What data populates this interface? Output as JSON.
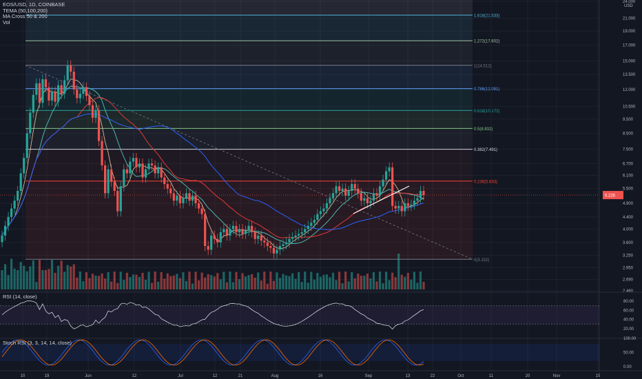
{
  "header": {
    "symbol": "EOS/USD, 1D, COINBASE",
    "indicators": [
      "TEMA (50,100,200)",
      "MA Cross 50 & 200",
      "Vol"
    ]
  },
  "axis": {
    "currency": "USD",
    "price_ticks": [
      "24.000",
      "21.000",
      "19.000",
      "17.000",
      "15.000",
      "13.500",
      "12.000",
      "10.500",
      "9.500",
      "8.500",
      "7.500",
      "6.700",
      "6.100",
      "5.500",
      "4.900",
      "4.400",
      "4.000",
      "3.600",
      "3.250",
      "2.950",
      "2.690",
      "2.460"
    ],
    "current_price": "5.226",
    "date_ticks": [
      "10",
      "19",
      "Jun",
      "12",
      "Jul",
      "12",
      "21",
      "Aug",
      "16",
      "Sep",
      "13",
      "22",
      "Oct",
      "11",
      "20",
      "Nov",
      "15"
    ]
  },
  "fib": {
    "levels": [
      {
        "ratio": "1.618",
        "price": "21.533",
        "label": "1.618(21.533)",
        "color": "#4fb3d8"
      },
      {
        "ratio": "1.272",
        "price": "17.602",
        "label": "1.272(17.602)",
        "color": "#9fc4a0"
      },
      {
        "ratio": "1",
        "price": "14.512",
        "label": "1(14.512)",
        "color": "#787b86"
      },
      {
        "ratio": "0.786",
        "price": "12.081",
        "label": "0.786(12.081)",
        "color": "#5b9cf6"
      },
      {
        "ratio": "0.618",
        "price": "10.172",
        "label": "0.618(10.172)",
        "color": "#26a69a"
      },
      {
        "ratio": "0.5",
        "price": "8.832",
        "label": "0.5(8.832)",
        "color": "#81c784"
      },
      {
        "ratio": "0.382",
        "price": "7.491",
        "label": "0.382(7.491)",
        "color": "#d1d4dc"
      },
      {
        "ratio": "0.236",
        "price": "5.833",
        "label": "0.236(5.833)",
        "color": "#f44336"
      },
      {
        "ratio": "0",
        "price": "3.152",
        "label": "0(3.152)",
        "color": "#787b86"
      }
    ]
  },
  "rsi": {
    "label": "RSI (14, close)",
    "ticks": [
      "80.00",
      "60.00",
      "40.00",
      "20.00"
    ]
  },
  "stoch": {
    "label": "Stoch RSI (3, 3, 14, 14, close)",
    "ticks": [
      "100.00",
      "50.00",
      "0.00"
    ]
  },
  "colors": {
    "background": "#131722",
    "up": "#26a69a",
    "down": "#ef5350",
    "grid": "#1e222d",
    "tema": "#2962ff",
    "ma_fast": "#4db6ac",
    "ma_slow": "#e53935",
    "trend": "#ffffff"
  },
  "chart_data": {
    "type": "candlestick",
    "price_scale": "log",
    "ylim": [
      2.46,
      24.0
    ],
    "closes": [
      3.8,
      4.1,
      4.4,
      4.7,
      5.0,
      5.4,
      6.2,
      7.0,
      8.5,
      10.0,
      11.5,
      12.6,
      10.8,
      13.0,
      12.2,
      11.0,
      11.8,
      10.9,
      12.4,
      11.6,
      12.9,
      14.51,
      13.8,
      12.0,
      11.2,
      11.6,
      12.2,
      11.4,
      10.6,
      9.6,
      10.2,
      8.0,
      6.6,
      5.3,
      6.4,
      5.8,
      5.4,
      4.6,
      5.6,
      6.4,
      6.2,
      6.8,
      7.0,
      6.5,
      6.7,
      6.0,
      6.4,
      6.7,
      6.6,
      6.2,
      6.5,
      6.0,
      5.7,
      5.5,
      5.3,
      5.0,
      5.2,
      4.9,
      5.1,
      5.3,
      5.0,
      5.2,
      4.9,
      4.7,
      4.5,
      3.5,
      3.4,
      3.8,
      3.7,
      3.6,
      3.9,
      4.0,
      3.8,
      4.0,
      4.1,
      3.9,
      4.0,
      3.85,
      3.95,
      4.1,
      3.9,
      3.7,
      3.8,
      3.65,
      3.6,
      3.5,
      3.45,
      3.3,
      3.4,
      3.5,
      3.55,
      3.6,
      3.7,
      3.75,
      3.8,
      3.85,
      3.9,
      4.0,
      4.1,
      4.2,
      4.3,
      4.5,
      4.6,
      4.7,
      4.9,
      5.1,
      5.3,
      5.6,
      5.4,
      5.5,
      5.2,
      5.4,
      5.7,
      5.5,
      5.3,
      5.0,
      5.1,
      4.9,
      5.0,
      5.3,
      5.2,
      5.6,
      5.9,
      6.3,
      6.5,
      4.8,
      4.7,
      4.8,
      4.6,
      4.9,
      4.8,
      4.85,
      5.0,
      5.1,
      5.4,
      5.226
    ],
    "dates_shown": [
      "10",
      "19",
      "Jun",
      "12",
      "Jul",
      "12",
      "21",
      "Aug",
      "16",
      "Sep",
      "13",
      "22",
      "Oct",
      "11",
      "20",
      "Nov",
      "15"
    ]
  }
}
